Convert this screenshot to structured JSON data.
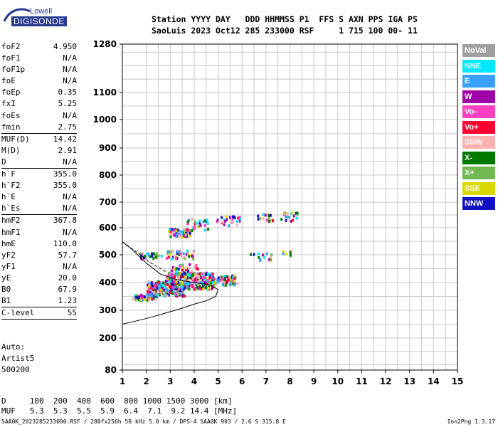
{
  "logo": {
    "top": "Lowell",
    "bottom": "DIGISONDE"
  },
  "header": {
    "line1": "Station YYYY DAY   DDD HHMMSS P1  FFS S AXN PPS IGA PS",
    "line2": "SaoLuis 2023 Oct12 285 233000 RSF     1 715 100 00- 11"
  },
  "params": [
    {
      "label": "foF2",
      "value": "4.950"
    },
    {
      "label": "foF1",
      "value": "N/A"
    },
    {
      "label": "foF1p",
      "value": "N/A"
    },
    {
      "label": "foE",
      "value": "N/A"
    },
    {
      "label": "foEp",
      "value": "0.35"
    },
    {
      "label": "fxI",
      "value": "5.25"
    },
    {
      "label": "foEs",
      "value": "N/A"
    },
    {
      "label": "fmin",
      "value": "2.75",
      "sep": true
    },
    {
      "label": "MUF(D)",
      "value": "14.42"
    },
    {
      "label": "M(D)",
      "value": "2.91"
    },
    {
      "label": "D",
      "value": "N/A",
      "sep": true
    },
    {
      "label": "h`F",
      "value": "355.0"
    },
    {
      "label": "h`F2",
      "value": "355.0"
    },
    {
      "label": "h`E",
      "value": "N/A"
    },
    {
      "label": "h`Es",
      "value": "N/A",
      "sep": true
    },
    {
      "label": "hmF2",
      "value": "367.8"
    },
    {
      "label": "hmF1",
      "value": "N/A"
    },
    {
      "label": "hmE",
      "value": "110.0"
    },
    {
      "label": "yF2",
      "value": "57.7"
    },
    {
      "label": "yF1",
      "value": "N/A"
    },
    {
      "label": "yE",
      "value": "20.0"
    },
    {
      "label": "B0",
      "value": "67.9"
    },
    {
      "label": "B1",
      "value": "1.23",
      "sep": true
    },
    {
      "label": "C-level",
      "value": "55",
      "sep": true
    }
  ],
  "notes": [
    "Auto:",
    "Artist5",
    "500200"
  ],
  "bottom": {
    "line1": "D     100  200  400  600  800 1000 1500 3000 [km]",
    "line2": "MUF   5.3  5.3  5.5  5.9  6.4  7.1  9.2 14.4 [MHz]"
  },
  "footer": "SAA0K_2023285233000.RSF / 280fx256h 50 kHz 5.0 km / DPS-4 SAA0K 903 / 2.6 S 315.8 E",
  "footer_right": "Ion2Png 1.3.17",
  "legend": [
    {
      "label": "NoVal",
      "color": "#a0a0a0"
    },
    {
      "label": "NNE",
      "color": "#00e8ff"
    },
    {
      "label": "E",
      "color": "#3aa0ff"
    },
    {
      "label": "W",
      "color": "#a000a8"
    },
    {
      "label": "Vo-",
      "color": "#ff40c0"
    },
    {
      "label": "Vo+",
      "color": "#ff0030"
    },
    {
      "label": "SSW",
      "color": "#ffb0b0"
    },
    {
      "label": "X-",
      "color": "#007800"
    },
    {
      "label": "X+",
      "color": "#70b850"
    },
    {
      "label": "SSE",
      "color": "#d8d800"
    },
    {
      "label": "NNW",
      "color": "#1010c0"
    }
  ],
  "chart_data": {
    "type": "scatter",
    "title": "",
    "xlabel": "",
    "ylabel": "",
    "xlim": [
      1,
      15
    ],
    "ylim": [
      80,
      1280
    ],
    "x_ticks": [
      "1",
      "2",
      "3",
      "4",
      "5",
      "6",
      "7",
      "8",
      "9",
      "10",
      "11",
      "12",
      "13",
      "14",
      "15"
    ],
    "y_ticks": [
      "80",
      "200",
      "300",
      "400",
      "500",
      "600",
      "700",
      "800",
      "900",
      "1000",
      "1100",
      "1280"
    ],
    "y_scale": "ionogram (nonlinear)",
    "grid": true,
    "clusters": [
      {
        "x": [
          1.4,
          2.4
        ],
        "y": [
          340,
          360
        ],
        "n": 60
      },
      {
        "x": [
          2.0,
          3.6
        ],
        "y": [
          355,
          410
        ],
        "n": 220
      },
      {
        "x": [
          2.8,
          4.8
        ],
        "y": [
          380,
          440
        ],
        "n": 320
      },
      {
        "x": [
          4.5,
          5.8
        ],
        "y": [
          395,
          430
        ],
        "n": 80
      },
      {
        "x": [
          1.7,
          2.6
        ],
        "y": [
          490,
          510
        ],
        "n": 30
      },
      {
        "x": [
          2.8,
          4.0
        ],
        "y": [
          490,
          520
        ],
        "n": 40
      },
      {
        "x": [
          2.9,
          3.8
        ],
        "y": [
          570,
          600
        ],
        "n": 70
      },
      {
        "x": [
          3.6,
          4.6
        ],
        "y": [
          590,
          640
        ],
        "n": 30
      },
      {
        "x": [
          4.8,
          5.9
        ],
        "y": [
          610,
          650
        ],
        "n": 25
      },
      {
        "x": [
          6.6,
          7.3
        ],
        "y": [
          630,
          660
        ],
        "n": 15
      },
      {
        "x": [
          7.6,
          8.3
        ],
        "y": [
          630,
          665
        ],
        "n": 20
      },
      {
        "x": [
          6.2,
          7.2
        ],
        "y": [
          480,
          510
        ],
        "n": 15
      },
      {
        "x": [
          7.6,
          8.2
        ],
        "y": [
          500,
          520
        ],
        "n": 8
      },
      {
        "x": [
          3.0,
          4.2
        ],
        "y": [
          430,
          470
        ],
        "n": 40
      }
    ],
    "profile_curve": {
      "x": [
        1.0,
        1.6,
        2.2,
        2.8,
        3.4,
        4.0,
        4.5,
        4.9,
        5.0,
        4.6,
        4.0,
        3.3,
        2.6,
        2.0,
        1.4,
        1.0
      ],
      "y": [
        250,
        262,
        275,
        290,
        305,
        322,
        334,
        350,
        375,
        392,
        400,
        410,
        430,
        470,
        520,
        548
      ]
    }
  }
}
